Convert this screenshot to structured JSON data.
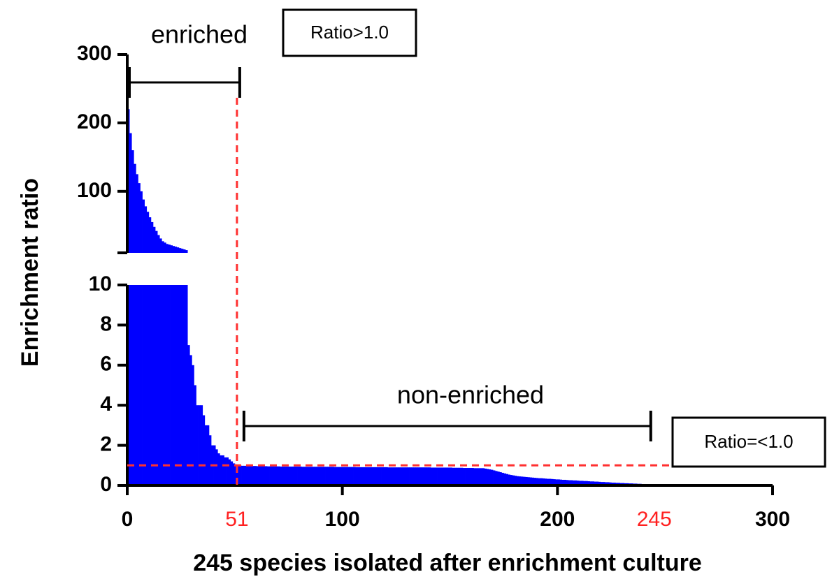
{
  "chart_data": {
    "type": "bar",
    "x_label": "245 species isolated after enrichment culture",
    "y_label": "Enrichment ratio",
    "color": "#0000ff",
    "xlim": [
      0,
      300
    ],
    "xticks": [
      0,
      100,
      200,
      300
    ],
    "marked_x": [
      51,
      245
    ],
    "threshold": 1,
    "lower_ylim": [
      0,
      10
    ],
    "lower_yticks": [
      0,
      2,
      4,
      6,
      8,
      10
    ],
    "upper_ylim": [
      10,
      300
    ],
    "upper_yticks": [
      100,
      200,
      300
    ],
    "annotations": [
      "enriched",
      "Ratio>1.0",
      "non-enriched",
      "Ratio=<1.0"
    ],
    "values": [
      220,
      185,
      160,
      140,
      125,
      112,
      100,
      88,
      78,
      70,
      62,
      55,
      48,
      42,
      36,
      31,
      27,
      25,
      23,
      22,
      21,
      20,
      19,
      18,
      17,
      16,
      15,
      14,
      7,
      6.5,
      6,
      5,
      4,
      4,
      4,
      3.5,
      3,
      3,
      2.5,
      2,
      2,
      1.8,
      1.6,
      1.5,
      1.5,
      1.4,
      1.4,
      1.3,
      1.2,
      1.1,
      1.05,
      0.99,
      0.99,
      0.98,
      0.98,
      0.98,
      0.97,
      0.97,
      0.97,
      0.97,
      0.96,
      0.96,
      0.96,
      0.96,
      0.96,
      0.95,
      0.95,
      0.95,
      0.95,
      0.95,
      0.95,
      0.94,
      0.94,
      0.94,
      0.94,
      0.94,
      0.94,
      0.94,
      0.94,
      0.94,
      0.94,
      0.93,
      0.93,
      0.93,
      0.93,
      0.93,
      0.93,
      0.93,
      0.93,
      0.93,
      0.93,
      0.93,
      0.93,
      0.93,
      0.93,
      0.93,
      0.92,
      0.92,
      0.92,
      0.92,
      0.92,
      0.92,
      0.92,
      0.92,
      0.92,
      0.92,
      0.91,
      0.91,
      0.91,
      0.91,
      0.91,
      0.91,
      0.91,
      0.91,
      0.91,
      0.91,
      0.91,
      0.91,
      0.91,
      0.91,
      0.91,
      0.9,
      0.9,
      0.9,
      0.9,
      0.9,
      0.9,
      0.9,
      0.9,
      0.9,
      0.9,
      0.9,
      0.9,
      0.9,
      0.9,
      0.9,
      0.9,
      0.9,
      0.9,
      0.9,
      0.9,
      0.89,
      0.89,
      0.89,
      0.89,
      0.89,
      0.89,
      0.89,
      0.89,
      0.89,
      0.89,
      0.88,
      0.88,
      0.88,
      0.88,
      0.88,
      0.87,
      0.87,
      0.87,
      0.87,
      0.87,
      0.86,
      0.86,
      0.86,
      0.86,
      0.86,
      0.84,
      0.82,
      0.8,
      0.78,
      0.75,
      0.72,
      0.69,
      0.66,
      0.63,
      0.6,
      0.57,
      0.54,
      0.52,
      0.5,
      0.48,
      0.46,
      0.45,
      0.44,
      0.43,
      0.42,
      0.41,
      0.4,
      0.39,
      0.38,
      0.37,
      0.36,
      0.36,
      0.35,
      0.34,
      0.33,
      0.33,
      0.32,
      0.31,
      0.3,
      0.3,
      0.29,
      0.28,
      0.28,
      0.27,
      0.26,
      0.26,
      0.25,
      0.25,
      0.24,
      0.23,
      0.23,
      0.22,
      0.22,
      0.21,
      0.2,
      0.2,
      0.19,
      0.19,
      0.18,
      0.17,
      0.17,
      0.16,
      0.16,
      0.15,
      0.14,
      0.14,
      0.13,
      0.13,
      0.12,
      0.12,
      0.11,
      0.11,
      0.1,
      0.1,
      0.09,
      0.09,
      0.08,
      0.08,
      0.07,
      0.07,
      0.06,
      0.06,
      0.05,
      0.05
    ]
  }
}
